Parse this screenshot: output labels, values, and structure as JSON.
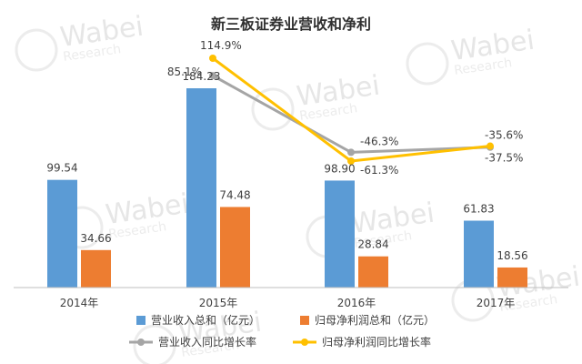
{
  "chart_data": {
    "type": "bar",
    "title": "新三板证券业营收和净利",
    "categories": [
      "2014年",
      "2015年",
      "2016年",
      "2017年"
    ],
    "series": [
      {
        "name": "营业收入总和（亿元）",
        "type": "bar",
        "color": "#5b9bd5",
        "values": [
          99.54,
          184.23,
          98.9,
          61.83
        ]
      },
      {
        "name": "归母净利润总和（亿元）",
        "type": "bar",
        "color": "#ed7d31",
        "values": [
          34.66,
          74.48,
          28.84,
          18.56
        ]
      },
      {
        "name": "营业收入同比增长率",
        "type": "line",
        "color": "#a5a5a5",
        "values": [
          null,
          85.1,
          -46.3,
          -37.5
        ]
      },
      {
        "name": "归母净利润同比增长率",
        "type": "line",
        "color": "#ffc000",
        "values": [
          null,
          114.9,
          -61.3,
          -35.6
        ]
      }
    ],
    "bar_labels": [
      [
        "99.54",
        "184.23",
        "98.90",
        "61.83"
      ],
      [
        "34.66",
        "74.48",
        "28.84",
        "18.56"
      ]
    ],
    "line_labels": [
      [
        null,
        "85.1%",
        "-46.3%",
        "-37.5%"
      ],
      [
        null,
        "114.9%",
        "-61.3%",
        "-35.6%"
      ]
    ],
    "bar_ylim": [
      0,
      200
    ],
    "line_ylim": [
      -80,
      130
    ],
    "legend": "bottom",
    "watermark": [
      "Wabei",
      "Research"
    ]
  }
}
